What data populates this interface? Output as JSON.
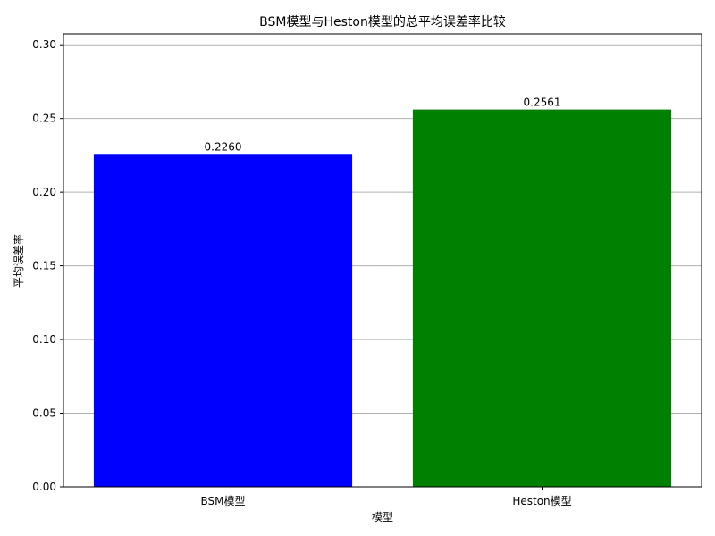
{
  "chart_data": {
    "type": "bar",
    "title": "BSM模型与Heston模型的总平均误差率比较",
    "xlabel": "模型",
    "ylabel": "平均误差率",
    "categories": [
      "BSM模型",
      "Heston模型"
    ],
    "values": [
      0.226,
      0.2561
    ],
    "data_labels": [
      "0.2260",
      "0.2561"
    ],
    "bar_colors": [
      "#0000ff",
      "#008000"
    ],
    "ylim": [
      0,
      0.3074
    ],
    "yticks": [
      0.0,
      0.05,
      0.1,
      0.15,
      0.2,
      0.25,
      0.3
    ],
    "ytick_labels": [
      "0.00",
      "0.05",
      "0.10",
      "0.15",
      "0.20",
      "0.25",
      "0.30"
    ],
    "grid": "y-axis",
    "grid_color": "#b0b0b0"
  }
}
